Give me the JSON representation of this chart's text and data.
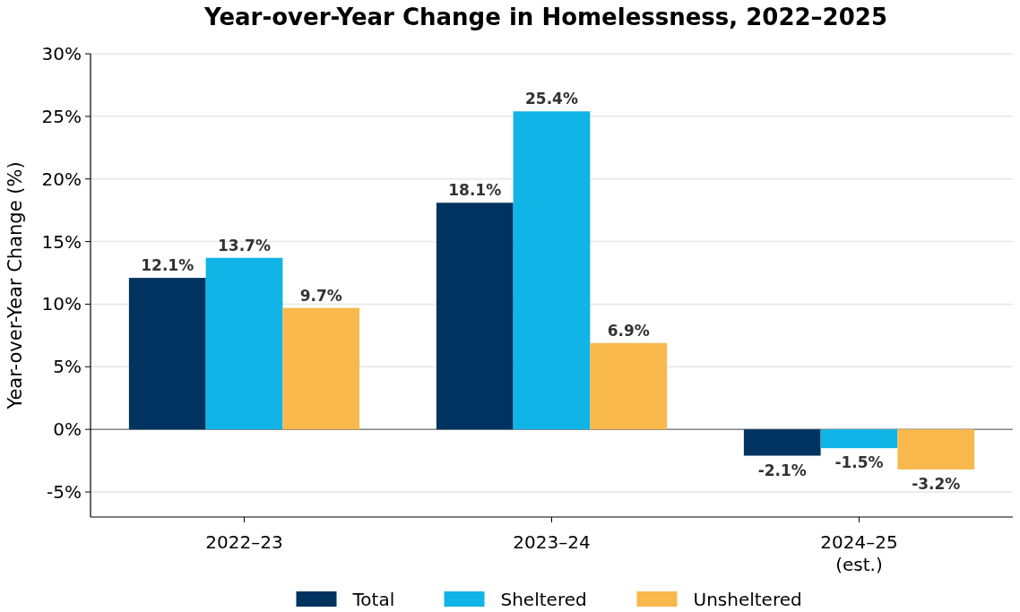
{
  "chart_data": {
    "type": "bar",
    "title": "Year-over-Year Change in Homelessness, 2022–2025",
    "ylabel": "Year-over-Year Change (%)",
    "categories": [
      "2022–23",
      "2023–24",
      "2024–25\n(est.)"
    ],
    "series": [
      {
        "name": "Total",
        "color": "#003360",
        "values": [
          12.1,
          18.1,
          -2.1
        ],
        "value_labels": [
          "12.1%",
          "18.1%",
          "-2.1%"
        ]
      },
      {
        "name": "Sheltered",
        "color": "#10b4e6",
        "values": [
          13.7,
          25.4,
          -1.5
        ],
        "value_labels": [
          "13.7%",
          "25.4%",
          "-1.5%"
        ]
      },
      {
        "name": "Unsheltered",
        "color": "#f8b84c",
        "values": [
          9.7,
          6.9,
          -3.2
        ],
        "value_labels": [
          "9.7%",
          "6.9%",
          "-3.2%"
        ]
      }
    ],
    "ylim": [
      -7,
      30
    ],
    "yticks": [
      {
        "value": -5,
        "label": "-5%"
      },
      {
        "value": 0,
        "label": "0%"
      },
      {
        "value": 5,
        "label": "5%"
      },
      {
        "value": 10,
        "label": "10%"
      },
      {
        "value": 15,
        "label": "15%"
      },
      {
        "value": 20,
        "label": "20%"
      },
      {
        "value": 25,
        "label": "25%"
      },
      {
        "value": 30,
        "label": "30%"
      }
    ],
    "grid": "y",
    "legend": "bottom",
    "ref_lines": [
      {
        "axis": "y",
        "value": 0,
        "color": "#888888"
      }
    ]
  }
}
